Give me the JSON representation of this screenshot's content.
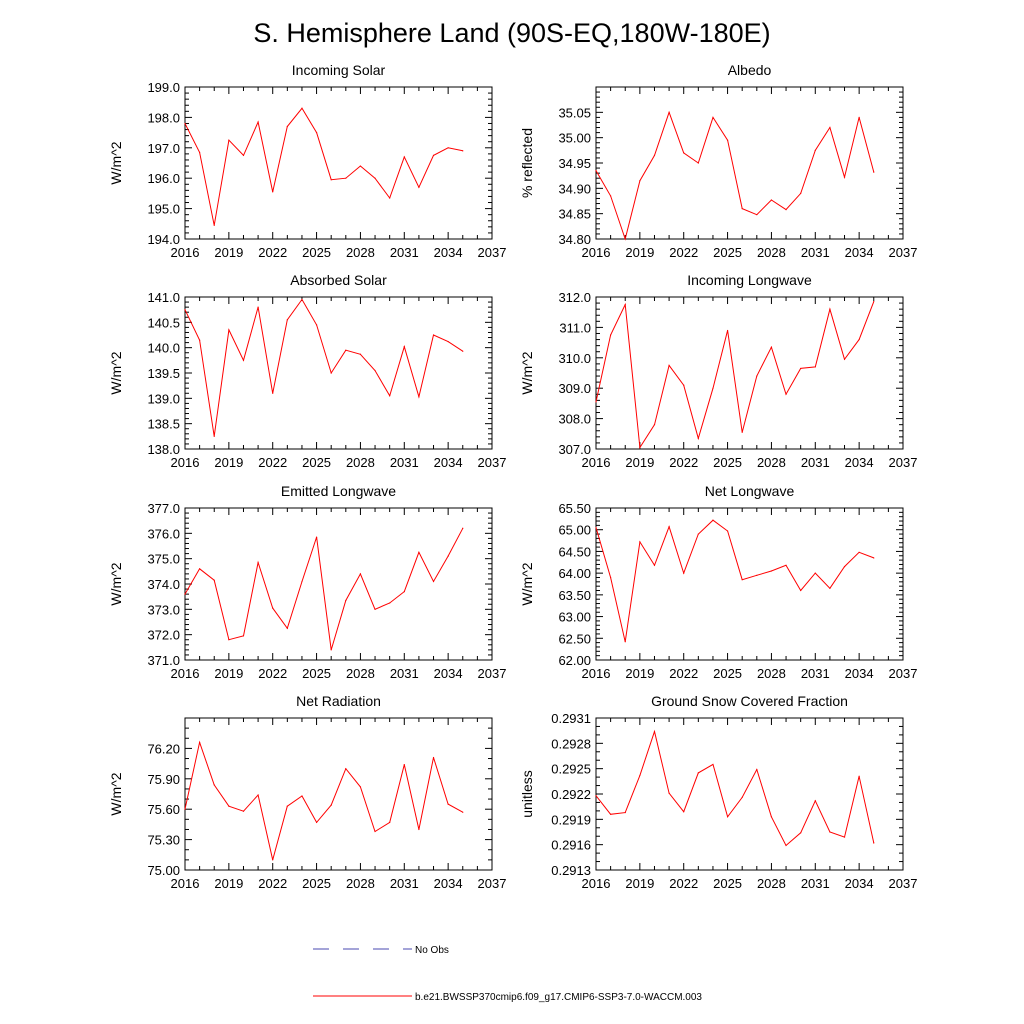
{
  "page": {
    "title": "S. Hemisphere Land (90S-EQ,180W-180E)"
  },
  "legend": [
    {
      "label": "No Obs",
      "style": "dashed",
      "color": "#4a4ab0"
    },
    {
      "label": "b.e21.BWSSP370cmip6.f09_g17.CMIP6-SSP3-7.0-WACCM.003",
      "style": "solid",
      "color": "#ff0000"
    }
  ],
  "chart_data": [
    {
      "type": "line",
      "title": "Incoming Solar",
      "xlabel": "",
      "ylabel": "W/m^2",
      "xlim": [
        2016,
        2037
      ],
      "xticks": [
        "2016",
        "2019",
        "2022",
        "2025",
        "2028",
        "2031",
        "2034",
        "2037"
      ],
      "ylim": [
        194.0,
        199.0
      ],
      "yticks": [
        "194.0",
        "195.0",
        "196.0",
        "197.0",
        "198.0",
        "199.0"
      ],
      "yminor": 5,
      "series": [
        {
          "name": "b.e21.BWSSP370cmip6.f09_g17.CMIP6-SSP3-7.0-WACCM.003",
          "color": "#ff0000",
          "x": [
            2016,
            2017,
            2018,
            2019,
            2020,
            2021,
            2022,
            2023,
            2024,
            2025,
            2026,
            2027,
            2028,
            2029,
            2030,
            2031,
            2032,
            2033,
            2034,
            2035
          ],
          "values": [
            197.8,
            196.85,
            194.45,
            197.25,
            196.75,
            197.85,
            195.55,
            197.7,
            198.3,
            197.5,
            195.95,
            196.0,
            196.4,
            196.0,
            195.35,
            196.7,
            195.7,
            196.75,
            197.0,
            196.9
          ]
        }
      ]
    },
    {
      "type": "line",
      "title": "Albedo",
      "xlabel": "",
      "ylabel": "% reflected",
      "xlim": [
        2016,
        2037
      ],
      "xticks": [
        "2016",
        "2019",
        "2022",
        "2025",
        "2028",
        "2031",
        "2034",
        "2037"
      ],
      "ylim": [
        34.8,
        35.1
      ],
      "yticks": [
        "34.80",
        "34.85",
        "34.90",
        "34.95",
        "35.00",
        "35.05"
      ],
      "yminor": 5,
      "series": [
        {
          "name": "b.e21.BWSSP370cmip6.f09_g17.CMIP6-SSP3-7.0-WACCM.003",
          "color": "#ff0000",
          "x": [
            2016,
            2017,
            2018,
            2019,
            2020,
            2021,
            2022,
            2023,
            2024,
            2025,
            2026,
            2027,
            2028,
            2029,
            2030,
            2031,
            2032,
            2033,
            2034,
            2035
          ],
          "values": [
            34.935,
            34.885,
            34.8,
            34.915,
            34.965,
            35.05,
            34.97,
            34.95,
            35.04,
            34.995,
            34.86,
            34.848,
            34.877,
            34.858,
            34.89,
            34.975,
            35.02,
            34.922,
            35.04,
            34.932
          ]
        }
      ]
    },
    {
      "type": "line",
      "title": "Absorbed Solar",
      "xlabel": "",
      "ylabel": "W/m^2",
      "xlim": [
        2016,
        2037
      ],
      "xticks": [
        "2016",
        "2019",
        "2022",
        "2025",
        "2028",
        "2031",
        "2034",
        "2037"
      ],
      "ylim": [
        138.0,
        141.0
      ],
      "yticks": [
        "138.0",
        "138.5",
        "139.0",
        "139.5",
        "140.0",
        "140.5",
        "141.0"
      ],
      "yminor": 5,
      "series": [
        {
          "name": "b.e21.BWSSP370cmip6.f09_g17.CMIP6-SSP3-7.0-WACCM.003",
          "color": "#ff0000",
          "x": [
            2016,
            2017,
            2018,
            2019,
            2020,
            2021,
            2022,
            2023,
            2024,
            2025,
            2026,
            2027,
            2028,
            2029,
            2030,
            2031,
            2032,
            2033,
            2034,
            2035
          ],
          "values": [
            140.75,
            140.15,
            138.25,
            140.35,
            139.75,
            140.8,
            139.1,
            140.55,
            140.95,
            140.45,
            139.5,
            139.95,
            139.87,
            139.55,
            139.05,
            140.02,
            139.03,
            140.25,
            140.12,
            139.93
          ]
        }
      ]
    },
    {
      "type": "line",
      "title": "Incoming Longwave",
      "xlabel": "",
      "ylabel": "W/m^2",
      "xlim": [
        2016,
        2037
      ],
      "xticks": [
        "2016",
        "2019",
        "2022",
        "2025",
        "2028",
        "2031",
        "2034",
        "2037"
      ],
      "ylim": [
        307.0,
        312.0
      ],
      "yticks": [
        "307.0",
        "308.0",
        "309.0",
        "310.0",
        "311.0",
        "312.0"
      ],
      "yminor": 5,
      "series": [
        {
          "name": "b.e21.BWSSP370cmip6.f09_g17.CMIP6-SSP3-7.0-WACCM.003",
          "color": "#ff0000",
          "x": [
            2016,
            2017,
            2018,
            2019,
            2020,
            2021,
            2022,
            2023,
            2024,
            2025,
            2026,
            2027,
            2028,
            2029,
            2030,
            2031,
            2032,
            2033,
            2034,
            2035
          ],
          "values": [
            308.55,
            310.75,
            311.75,
            307.05,
            307.8,
            309.75,
            309.1,
            307.35,
            309.0,
            310.9,
            307.55,
            309.4,
            310.35,
            308.8,
            309.65,
            309.7,
            311.6,
            309.95,
            310.6,
            311.85
          ]
        }
      ]
    },
    {
      "type": "line",
      "title": "Emitted Longwave",
      "xlabel": "",
      "ylabel": "W/m^2",
      "xlim": [
        2016,
        2037
      ],
      "xticks": [
        "2016",
        "2019",
        "2022",
        "2025",
        "2028",
        "2031",
        "2034",
        "2037"
      ],
      "ylim": [
        371.0,
        377.0
      ],
      "yticks": [
        "371.0",
        "372.0",
        "373.0",
        "374.0",
        "375.0",
        "376.0",
        "377.0"
      ],
      "yminor": 5,
      "series": [
        {
          "name": "b.e21.BWSSP370cmip6.f09_g17.CMIP6-SSP3-7.0-WACCM.003",
          "color": "#ff0000",
          "x": [
            2016,
            2017,
            2018,
            2019,
            2020,
            2021,
            2022,
            2023,
            2024,
            2025,
            2026,
            2027,
            2028,
            2029,
            2030,
            2031,
            2032,
            2033,
            2034,
            2035
          ],
          "values": [
            373.6,
            374.6,
            374.15,
            371.8,
            371.95,
            374.85,
            373.05,
            372.25,
            374.1,
            375.85,
            371.4,
            373.35,
            374.4,
            373.0,
            373.25,
            373.7,
            375.25,
            374.1,
            375.1,
            376.2
          ]
        }
      ]
    },
    {
      "type": "line",
      "title": "Net Longwave",
      "xlabel": "",
      "ylabel": "W/m^2",
      "xlim": [
        2016,
        2037
      ],
      "xticks": [
        "2016",
        "2019",
        "2022",
        "2025",
        "2028",
        "2031",
        "2034",
        "2037"
      ],
      "ylim": [
        62.0,
        65.5
      ],
      "yticks": [
        "62.00",
        "62.50",
        "63.00",
        "63.50",
        "64.00",
        "64.50",
        "65.00",
        "65.50"
      ],
      "yminor": 5,
      "series": [
        {
          "name": "b.e21.BWSSP370cmip6.f09_g17.CMIP6-SSP3-7.0-WACCM.003",
          "color": "#ff0000",
          "x": [
            2016,
            2017,
            2018,
            2019,
            2020,
            2021,
            2022,
            2023,
            2024,
            2025,
            2026,
            2027,
            2028,
            2029,
            2030,
            2031,
            2032,
            2033,
            2034,
            2035
          ],
          "values": [
            65.05,
            63.9,
            62.42,
            64.72,
            64.18,
            65.07,
            64.0,
            64.9,
            65.22,
            64.97,
            63.85,
            63.95,
            64.05,
            64.18,
            63.6,
            64.0,
            63.65,
            64.15,
            64.48,
            64.35
          ]
        }
      ]
    },
    {
      "type": "line",
      "title": "Net Radiation",
      "xlabel": "",
      "ylabel": "W/m^2",
      "xlim": [
        2016,
        2037
      ],
      "xticks": [
        "2016",
        "2019",
        "2022",
        "2025",
        "2028",
        "2031",
        "2034",
        "2037"
      ],
      "ylim": [
        75.0,
        76.5
      ],
      "yticks": [
        "75.00",
        "75.30",
        "75.60",
        "75.90",
        "76.20"
      ],
      "yminor": 3,
      "series": [
        {
          "name": "b.e21.BWSSP370cmip6.f09_g17.CMIP6-SSP3-7.0-WACCM.003",
          "color": "#ff0000",
          "x": [
            2016,
            2017,
            2018,
            2019,
            2020,
            2021,
            2022,
            2023,
            2024,
            2025,
            2026,
            2027,
            2028,
            2029,
            2030,
            2031,
            2032,
            2033,
            2034,
            2035
          ],
          "values": [
            75.6,
            76.26,
            75.84,
            75.63,
            75.58,
            75.74,
            75.1,
            75.63,
            75.73,
            75.47,
            75.64,
            76.0,
            75.82,
            75.38,
            75.47,
            76.04,
            75.4,
            76.11,
            75.65,
            75.57
          ]
        }
      ]
    },
    {
      "type": "line",
      "title": "Ground Snow Covered Fraction",
      "xlabel": "",
      "ylabel": "unitless",
      "xlim": [
        2016,
        2037
      ],
      "xticks": [
        "2016",
        "2019",
        "2022",
        "2025",
        "2028",
        "2031",
        "2034",
        "2037"
      ],
      "ylim": [
        0.2913,
        0.2931
      ],
      "yticks": [
        "0.2913",
        "0.2916",
        "0.2919",
        "0.2922",
        "0.2925",
        "0.2928",
        "0.2931"
      ],
      "yminor": 3,
      "series": [
        {
          "name": "b.e21.BWSSP370cmip6.f09_g17.CMIP6-SSP3-7.0-WACCM.003",
          "color": "#ff0000",
          "x": [
            2016,
            2017,
            2018,
            2019,
            2020,
            2021,
            2022,
            2023,
            2024,
            2025,
            2026,
            2027,
            2028,
            2029,
            2030,
            2031,
            2032,
            2033,
            2034,
            2035
          ],
          "values": [
            0.29218,
            0.29196,
            0.29198,
            0.29242,
            0.29294,
            0.29221,
            0.29199,
            0.29245,
            0.29255,
            0.29193,
            0.29216,
            0.29249,
            0.29193,
            0.29159,
            0.29174,
            0.29212,
            0.29175,
            0.29169,
            0.29241,
            0.29162
          ]
        }
      ]
    }
  ]
}
